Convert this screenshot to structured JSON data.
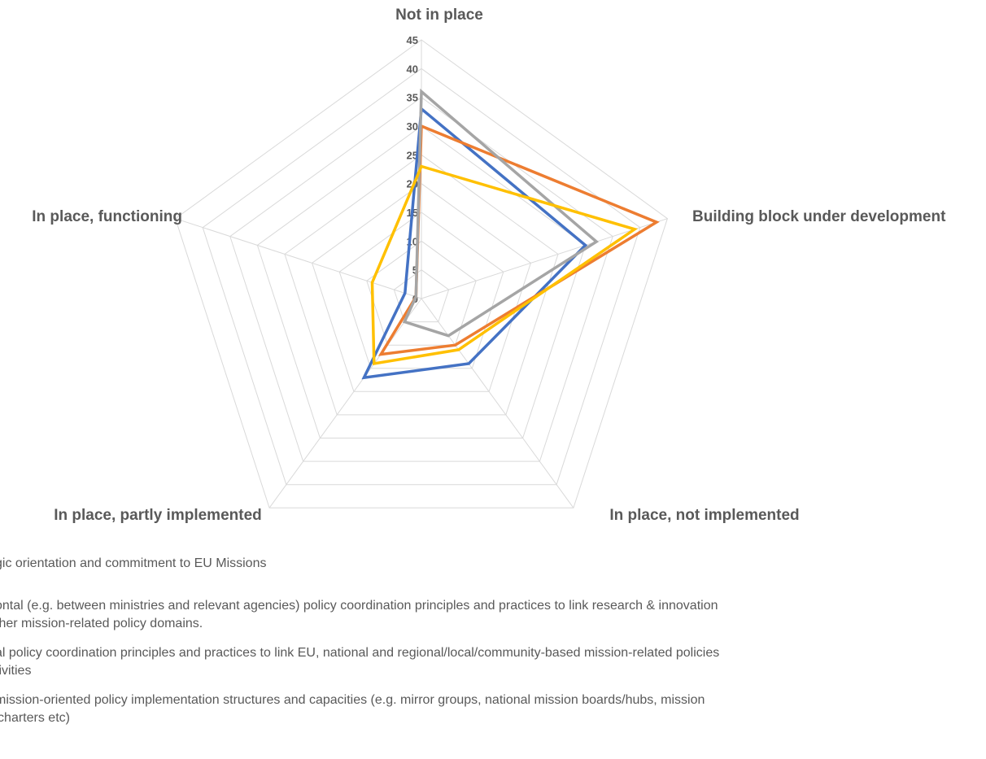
{
  "chart_data": {
    "type": "radar",
    "axes": [
      "Not in place",
      "Building block under development",
      "In place, not implemented",
      "In place, partly implemented",
      "In place, functioning"
    ],
    "r_range": [
      0,
      45
    ],
    "r_ticks": [
      "0",
      "5",
      "10",
      "15",
      "20",
      "25",
      "30",
      "35",
      "40",
      "45"
    ],
    "grid": true,
    "legend_position": "bottom",
    "series": [
      {
        "label": "gic orientation and commitment to EU Missions",
        "color": "#4472c4",
        "values": [
          33,
          30,
          14,
          17,
          3
        ]
      },
      {
        "label": "ontal (e.g. between ministries and relevant agencies) policy coordination principles and practices to link research & innovation\nther mission-related policy domains.",
        "color": "#ed7d31",
        "values": [
          30,
          43,
          10,
          12,
          1
        ]
      },
      {
        "label": "al policy coordination principles and practices to link EU, national and regional/local/community-based mission-related policies\ntivities",
        "color": "#a5a5a5",
        "values": [
          36,
          32,
          8,
          5,
          1
        ]
      },
      {
        "label": "mission-oriented policy implementation structures and capacities (e.g. mirror groups, national mission boards/hubs, mission\n'charters etc)",
        "color": "#ffc000",
        "values": [
          23,
          39,
          11,
          14,
          9
        ]
      }
    ]
  }
}
